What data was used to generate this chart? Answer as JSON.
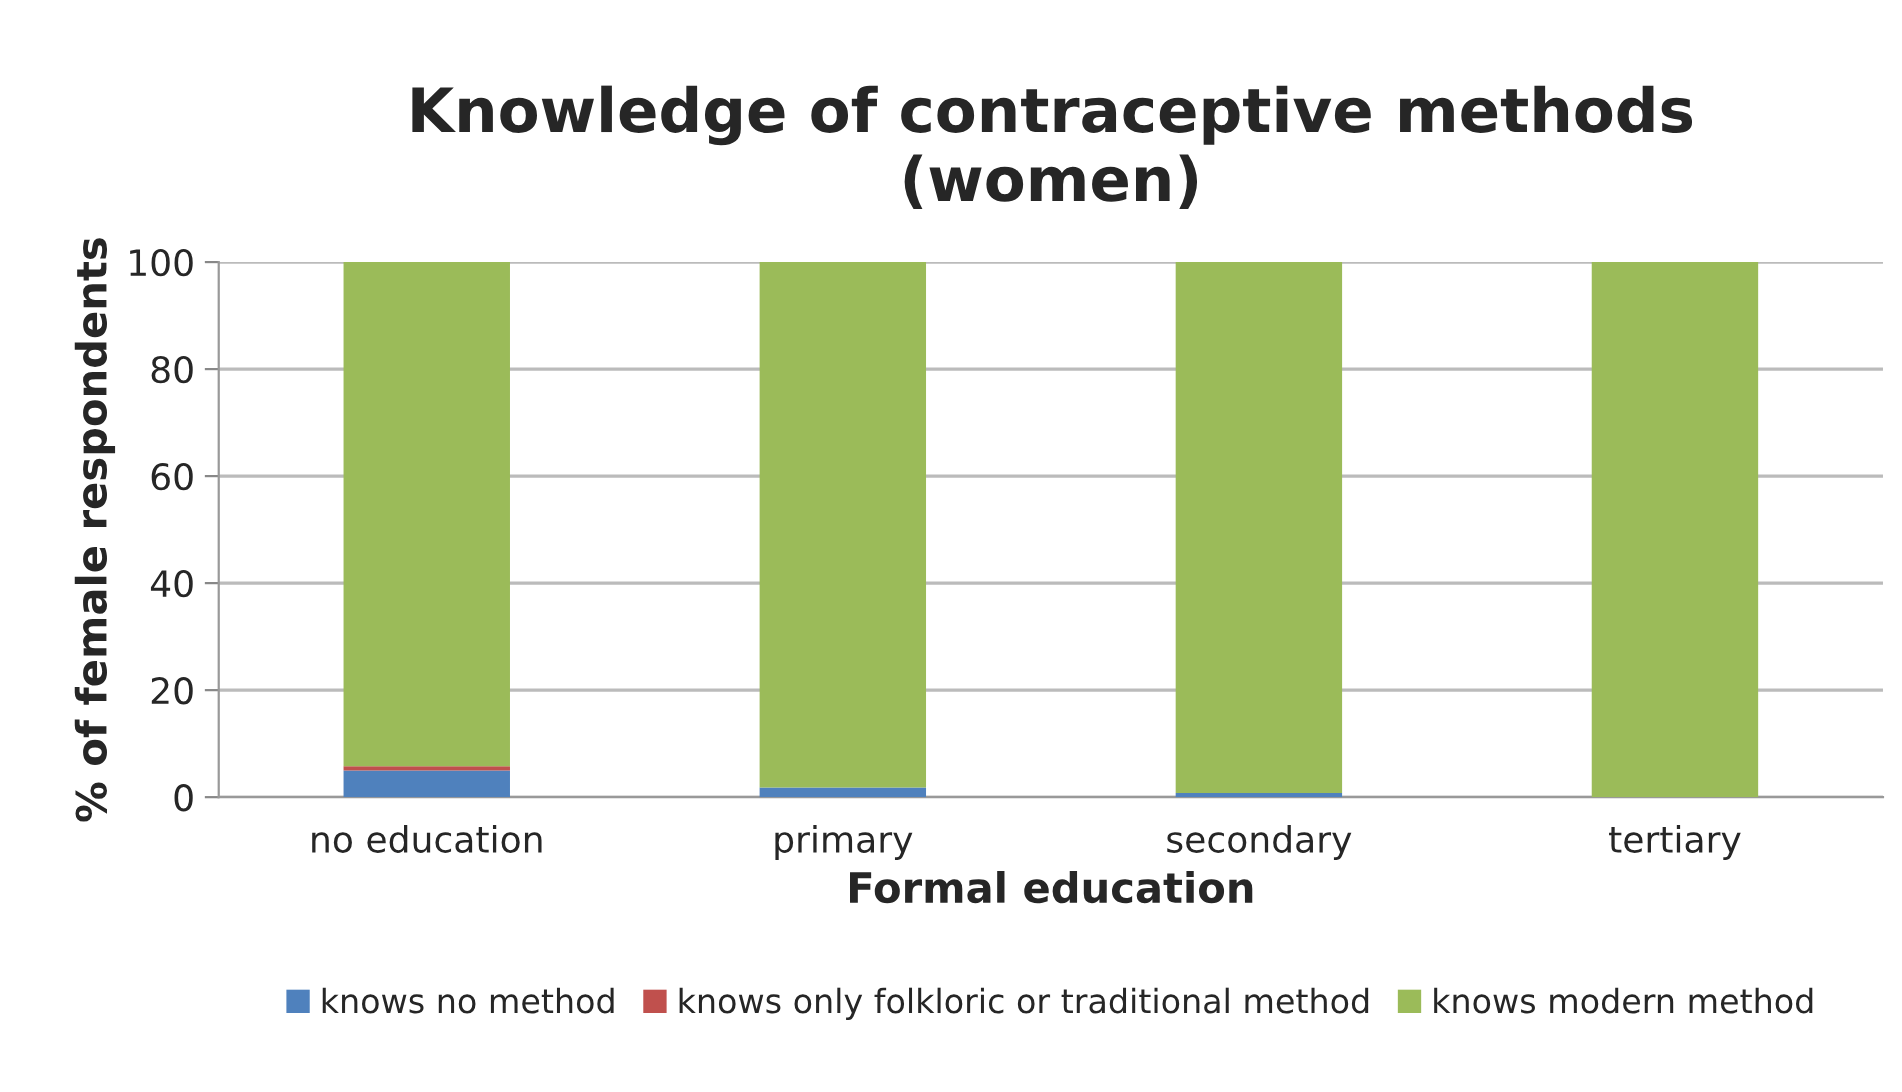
{
  "chart_data": {
    "type": "bar",
    "stacked": true,
    "title": "Knowledge of contraceptive methods\n(women)",
    "xlabel": "Formal education",
    "ylabel": "% of female respondents",
    "categories": [
      "no education",
      "primary",
      "secondary",
      "tertiary"
    ],
    "series": [
      {
        "name": "knows no method",
        "color": "#4f81bd",
        "values": [
          5,
          1.8,
          0.8,
          0
        ]
      },
      {
        "name": "knows only folkloric or traditional method",
        "color": "#c0504d",
        "values": [
          0.8,
          0,
          0,
          0
        ]
      },
      {
        "name": "knows modern method",
        "color": "#9bbb59",
        "values": [
          94.2,
          98.2,
          99.2,
          100
        ]
      }
    ],
    "ylim": [
      0,
      100
    ],
    "yticks": [
      0,
      20,
      40,
      60,
      80,
      100
    ],
    "grid": "y",
    "legend": "bottom"
  }
}
